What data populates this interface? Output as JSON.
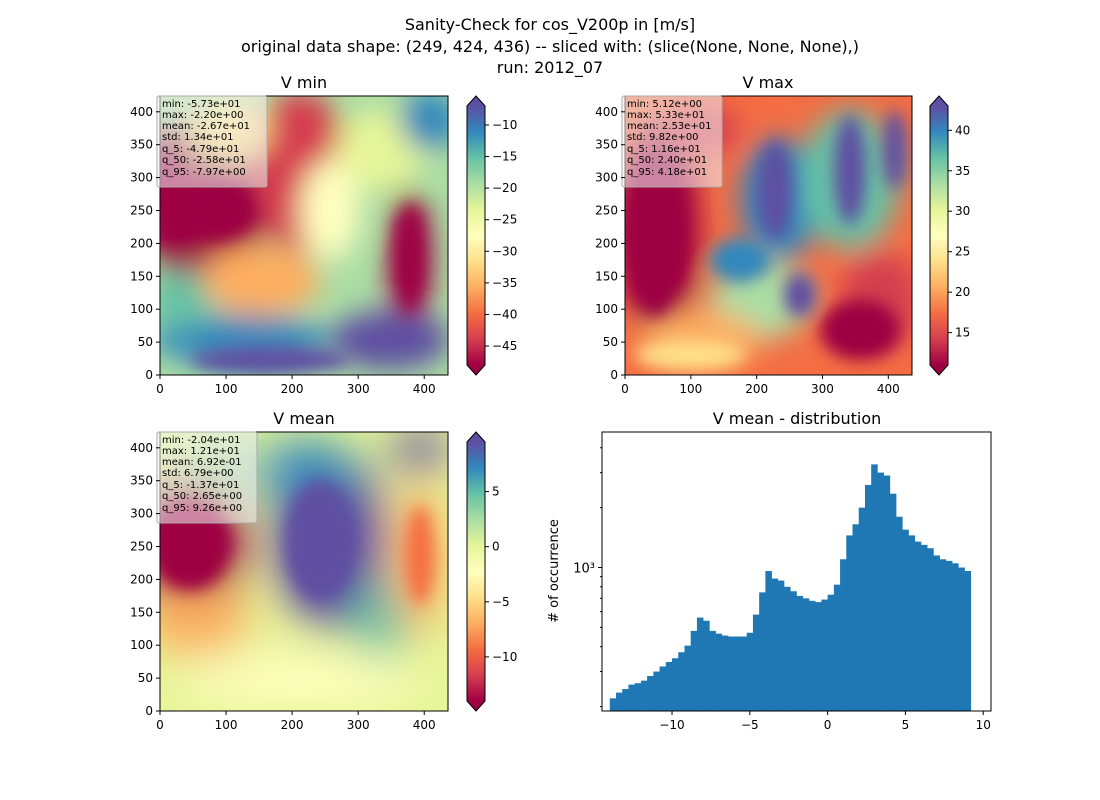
{
  "figure": {
    "suptitle": [
      "Sanity-Check for cos_V200p in [m/s]",
      "original data shape: (249, 424, 436) -- sliced with: (slice(None, None, None),)",
      "run: 2012_07"
    ]
  },
  "chart_data": [
    {
      "type": "heatmap",
      "title": "V min",
      "colormap": "Spectral",
      "x_ticks": [
        0,
        100,
        200,
        300,
        400
      ],
      "y_ticks": [
        0,
        50,
        100,
        150,
        200,
        250,
        300,
        350,
        400
      ],
      "xlim": [
        0,
        436
      ],
      "ylim": [
        0,
        424
      ],
      "colorbar": {
        "min": -48,
        "max": -7,
        "ticks": [
          -45,
          -40,
          -35,
          -30,
          -25,
          -20,
          -15,
          -10
        ],
        "extend": "both"
      },
      "stats": [
        "min: -5.73e+01",
        "max: -2.20e+00",
        "mean: -2.67e+01",
        "std: 1.34e+01",
        "q_5: -4.79e+01",
        "q_50: -2.58e+01",
        "q_95: -7.97e+00"
      ]
    },
    {
      "type": "heatmap",
      "title": "V max",
      "colormap": "Spectral",
      "x_ticks": [
        0,
        100,
        200,
        300,
        400
      ],
      "y_ticks": [
        0,
        50,
        100,
        150,
        200,
        250,
        300,
        350,
        400
      ],
      "xlim": [
        0,
        436
      ],
      "ylim": [
        0,
        424
      ],
      "colorbar": {
        "min": 11,
        "max": 43,
        "ticks": [
          15,
          20,
          25,
          30,
          35,
          40
        ],
        "extend": "both"
      },
      "stats": [
        "min: 5.12e+00",
        "max: 5.33e+01",
        "mean: 2.53e+01",
        "std: 9.82e+00",
        "q_5: 1.16e+01",
        "q_50: 2.40e+01",
        "q_95: 4.18e+01"
      ]
    },
    {
      "type": "heatmap",
      "title": "V mean",
      "colormap": "Spectral",
      "x_ticks": [
        0,
        100,
        200,
        300,
        400
      ],
      "y_ticks": [
        0,
        50,
        100,
        150,
        200,
        250,
        300,
        350,
        400
      ],
      "xlim": [
        0,
        436
      ],
      "ylim": [
        0,
        424
      ],
      "colorbar": {
        "min": -14,
        "max": 9.5,
        "ticks": [
          -10,
          -5,
          0,
          5
        ],
        "extend": "both"
      },
      "stats": [
        "min: -2.04e+01",
        "max: 1.21e+01",
        "mean: 6.92e-01",
        "std: 6.79e+00",
        "q_5: -1.37e+01",
        "q_50: 2.65e+00",
        "q_95: 9.26e+00"
      ]
    },
    {
      "type": "bar",
      "title": "V mean - distribution",
      "ylabel": "# of occurrence",
      "y_scale": "log",
      "y_tick_label": "10³",
      "xlim": [
        -14.5,
        10.5
      ],
      "ylim": [
        190,
        4800
      ],
      "x_ticks": [
        -10,
        -5,
        0,
        5,
        10
      ],
      "color": "#1f77b4",
      "bins": [
        [
          -13.8,
          220
        ],
        [
          -13.4,
          235
        ],
        [
          -13.0,
          245
        ],
        [
          -12.6,
          258
        ],
        [
          -12.2,
          262
        ],
        [
          -11.8,
          270
        ],
        [
          -11.4,
          285
        ],
        [
          -11.0,
          300
        ],
        [
          -10.6,
          318
        ],
        [
          -10.2,
          335
        ],
        [
          -9.8,
          350
        ],
        [
          -9.4,
          375
        ],
        [
          -9.0,
          405
        ],
        [
          -8.6,
          480
        ],
        [
          -8.2,
          560
        ],
        [
          -7.8,
          540
        ],
        [
          -7.4,
          480
        ],
        [
          -7.0,
          465
        ],
        [
          -6.6,
          455
        ],
        [
          -6.2,
          450
        ],
        [
          -5.8,
          450
        ],
        [
          -5.4,
          450
        ],
        [
          -5.0,
          470
        ],
        [
          -4.6,
          580
        ],
        [
          -4.2,
          750
        ],
        [
          -3.8,
          960
        ],
        [
          -3.4,
          880
        ],
        [
          -3.0,
          860
        ],
        [
          -2.6,
          800
        ],
        [
          -2.2,
          760
        ],
        [
          -1.8,
          720
        ],
        [
          -1.4,
          700
        ],
        [
          -1.0,
          680
        ],
        [
          -0.6,
          670
        ],
        [
          -0.2,
          690
        ],
        [
          0.2,
          730
        ],
        [
          0.6,
          820
        ],
        [
          1.0,
          1100
        ],
        [
          1.4,
          1450
        ],
        [
          1.8,
          1650
        ],
        [
          2.2,
          2000
        ],
        [
          2.6,
          2600
        ],
        [
          3.0,
          3300
        ],
        [
          3.4,
          3000
        ],
        [
          3.8,
          2900
        ],
        [
          4.2,
          2350
        ],
        [
          4.6,
          1800
        ],
        [
          5.0,
          1550
        ],
        [
          5.4,
          1450
        ],
        [
          5.8,
          1350
        ],
        [
          6.2,
          1300
        ],
        [
          6.6,
          1250
        ],
        [
          7.0,
          1150
        ],
        [
          7.4,
          1100
        ],
        [
          7.8,
          1080
        ],
        [
          8.2,
          1050
        ],
        [
          8.6,
          1000
        ],
        [
          9.0,
          960
        ]
      ],
      "bin_width": 0.4
    }
  ]
}
